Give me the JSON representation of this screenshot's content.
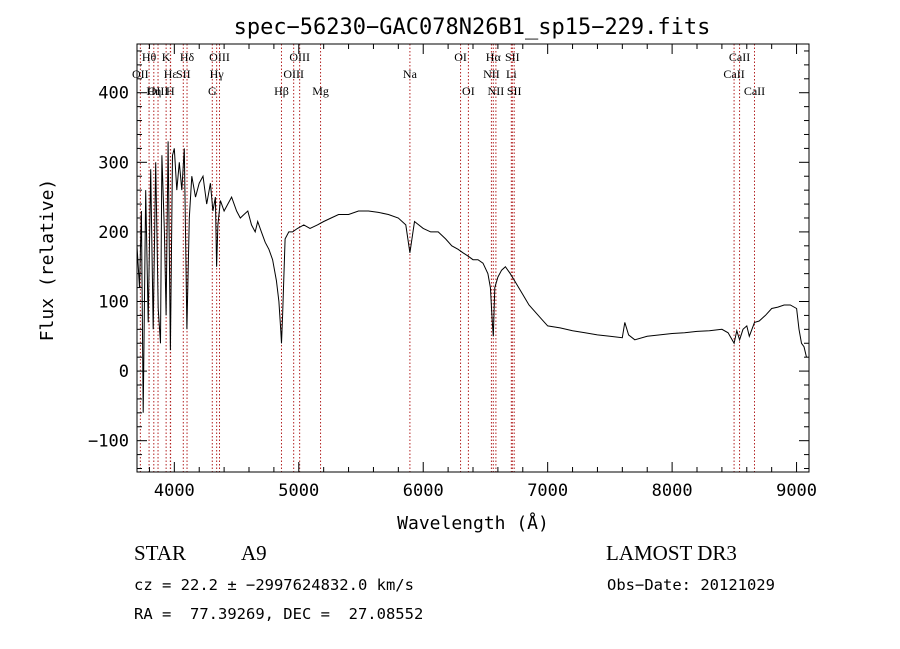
{
  "chart_data": {
    "type": "line",
    "title": "spec−56230−GAC078N26B1_sp15−229.fits",
    "xlabel": "Wavelength (Å)",
    "ylabel": "Flux (relative)",
    "xlim": [
      3700,
      9100
    ],
    "ylim": [
      -145,
      470
    ],
    "x_ticks": [
      4000,
      5000,
      6000,
      7000,
      8000,
      9000
    ],
    "x_tick_labels": [
      "4000",
      "5000",
      "6000",
      "7000",
      "8000",
      "9000"
    ],
    "y_ticks": [
      -100,
      0,
      100,
      200,
      300,
      400
    ],
    "y_tick_labels": [
      "−100",
      "0",
      "100",
      "200",
      "300",
      "400"
    ],
    "grid": false,
    "series": [
      {
        "x": [
          3700,
          3720,
          3735,
          3750,
          3770,
          3790,
          3810,
          3830,
          3850,
          3870,
          3889,
          3900,
          3920,
          3934,
          3950,
          3968,
          3985,
          4000,
          4020,
          4040,
          4060,
          4080,
          4101,
          4120,
          4140,
          4170,
          4200,
          4230,
          4260,
          4290,
          4310,
          4330,
          4340,
          4350,
          4370,
          4400,
          4430,
          4460,
          4500,
          4530,
          4560,
          4590,
          4620,
          4650,
          4670,
          4700,
          4730,
          4760,
          4790,
          4820,
          4840,
          4855,
          4861,
          4870,
          4890,
          4920,
          4950,
          4990,
          5040,
          5090,
          5150,
          5200,
          5260,
          5320,
          5400,
          5480,
          5560,
          5640,
          5720,
          5800,
          5860,
          5893,
          5930,
          6000,
          6060,
          6120,
          6180,
          6230,
          6280,
          6320,
          6363,
          6400,
          6440,
          6480,
          6520,
          6540,
          6555,
          6563,
          6575,
          6600,
          6630,
          6660,
          6700,
          6750,
          6800,
          6850,
          6900,
          6950,
          7000,
          7100,
          7200,
          7300,
          7400,
          7500,
          7600,
          7620,
          7650,
          7700,
          7800,
          7900,
          8000,
          8100,
          8200,
          8300,
          8400,
          8450,
          8498,
          8520,
          8542,
          8570,
          8600,
          8620,
          8662,
          8700,
          8750,
          8800,
          8850,
          8900,
          8950,
          9000,
          9020,
          9040,
          9060,
          9080
        ],
        "y": [
          180,
          120,
          230,
          -60,
          260,
          70,
          290,
          60,
          300,
          90,
          40,
          310,
          200,
          80,
          330,
          30,
          310,
          320,
          260,
          300,
          260,
          320,
          60,
          220,
          280,
          250,
          270,
          280,
          240,
          270,
          230,
          250,
          150,
          210,
          245,
          230,
          240,
          250,
          230,
          220,
          225,
          230,
          210,
          200,
          215,
          200,
          185,
          175,
          160,
          130,
          100,
          60,
          40,
          80,
          190,
          200,
          200,
          205,
          210,
          205,
          210,
          215,
          220,
          225,
          225,
          230,
          230,
          228,
          225,
          220,
          210,
          170,
          215,
          205,
          200,
          200,
          190,
          180,
          175,
          170,
          165,
          160,
          160,
          155,
          140,
          120,
          70,
          50,
          120,
          135,
          145,
          150,
          140,
          125,
          110,
          95,
          85,
          75,
          65,
          62,
          58,
          55,
          52,
          50,
          48,
          70,
          52,
          45,
          50,
          52,
          54,
          55,
          57,
          58,
          60,
          55,
          40,
          58,
          45,
          60,
          65,
          50,
          70,
          72,
          80,
          90,
          92,
          95,
          95,
          90,
          60,
          40,
          35,
          20
        ]
      }
    ],
    "line_markers": [
      {
        "label": "Hθ",
        "x": 3797,
        "row": 1
      },
      {
        "label": "OII",
        "x": 3727,
        "row": 2
      },
      {
        "label": "OIII",
        "x": 3869,
        "row": 3
      },
      {
        "label": "Hη",
        "x": 3835,
        "row": 3
      },
      {
        "label": "K",
        "x": 3934,
        "row": 1
      },
      {
        "label": "Hε",
        "x": 3970,
        "row": 2
      },
      {
        "label": "SII",
        "x": 4072,
        "row": 2
      },
      {
        "label": "H",
        "x": 3968,
        "row": 3
      },
      {
        "label": "Hδ",
        "x": 4102,
        "row": 1
      },
      {
        "label": "OIII",
        "x": 4363,
        "row": 1
      },
      {
        "label": "Hγ",
        "x": 4340,
        "row": 2
      },
      {
        "label": "G",
        "x": 4305,
        "row": 3
      },
      {
        "label": "OIII",
        "x": 5007,
        "row": 1
      },
      {
        "label": "OIII",
        "x": 4959,
        "row": 2
      },
      {
        "label": "Hβ",
        "x": 4861,
        "row": 3
      },
      {
        "label": "Mg",
        "x": 5175,
        "row": 3
      },
      {
        "label": "Na",
        "x": 5893,
        "row": 2
      },
      {
        "label": "OI",
        "x": 6300,
        "row": 1
      },
      {
        "label": "OI",
        "x": 6363,
        "row": 3
      },
      {
        "label": "Hα",
        "x": 6563,
        "row": 1
      },
      {
        "label": "SII",
        "x": 6716,
        "row": 1
      },
      {
        "label": "NII",
        "x": 6548,
        "row": 2
      },
      {
        "label": "Li",
        "x": 6708,
        "row": 2
      },
      {
        "label": "NII",
        "x": 6584,
        "row": 3
      },
      {
        "label": "SII",
        "x": 6731,
        "row": 3
      },
      {
        "label": "CaII",
        "x": 8542,
        "row": 1
      },
      {
        "label": "CaII",
        "x": 8498,
        "row": 2
      },
      {
        "label": "CaII",
        "x": 8662,
        "row": 3
      }
    ]
  },
  "info": {
    "object_class": "STAR",
    "subclass": "A9",
    "survey": "LAMOST DR3",
    "cz_line": "cz = 22.2 ± −2997624832.0 km/s",
    "obs_date_line": "Obs−Date: 20121029",
    "radec_line": "RA =  77.39269, DEC =  27.08552"
  }
}
